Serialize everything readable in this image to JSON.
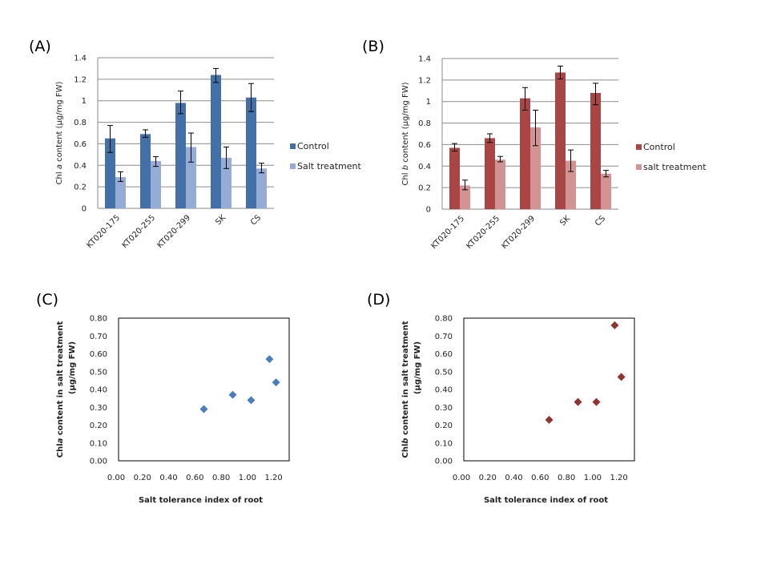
{
  "chart_data": [
    {
      "id": "A",
      "panel_label": "(A)",
      "type": "bar",
      "title": "",
      "xlabel": "",
      "ylabel": "Chl a content (µg/mg FW)",
      "ylabel_parts": [
        "Chl ",
        "a",
        " content (µg/mg FW)"
      ],
      "ylim": [
        0,
        1.4
      ],
      "yticks": [
        0,
        0.2,
        0.4,
        0.6,
        0.8,
        1,
        1.2,
        1.4
      ],
      "ytick_labels": [
        "0",
        "0.2",
        "0.4",
        "0.6",
        "0.8",
        "1",
        "1.2",
        "1.4"
      ],
      "grid": true,
      "legend_position": "right",
      "categories": [
        "KT020-175",
        "KT020-255",
        "KT020-299",
        "SK",
        "CS"
      ],
      "series": [
        {
          "name": "Control",
          "color": "#4470a8",
          "values": [
            0.65,
            0.69,
            0.98,
            1.24,
            1.03
          ],
          "err_low": [
            0.52,
            0.66,
            0.88,
            1.17,
            0.9
          ],
          "err_high": [
            0.77,
            0.73,
            1.09,
            1.3,
            1.16
          ]
        },
        {
          "name": "Salt treatment",
          "color": "#95add6",
          "values": [
            0.29,
            0.44,
            0.57,
            0.47,
            0.37
          ],
          "err_low": [
            0.25,
            0.39,
            0.43,
            0.37,
            0.33
          ],
          "err_high": [
            0.34,
            0.48,
            0.7,
            0.57,
            0.42
          ]
        }
      ]
    },
    {
      "id": "B",
      "panel_label": "(B)",
      "type": "bar",
      "title": "",
      "xlabel": "",
      "ylabel": "Chl b content (µg/mg FW)",
      "ylabel_parts": [
        "Chl ",
        "b",
        " content (µg/mg FW)"
      ],
      "ylim": [
        0,
        1.4
      ],
      "yticks": [
        0,
        0.2,
        0.4,
        0.6,
        0.8,
        1,
        1.2,
        1.4
      ],
      "ytick_labels": [
        "0",
        "0.2",
        "0.4",
        "0.6",
        "0.8",
        "1",
        "1.2",
        "1.4"
      ],
      "grid": true,
      "legend_position": "right",
      "categories": [
        "KT020-175",
        "KT020-255",
        "KT020-299",
        "SK",
        "CS"
      ],
      "series": [
        {
          "name": "Control",
          "color": "#a94544",
          "values": [
            0.57,
            0.66,
            1.03,
            1.27,
            1.08
          ],
          "err_low": [
            0.54,
            0.62,
            0.92,
            1.21,
            0.97
          ],
          "err_high": [
            0.61,
            0.7,
            1.13,
            1.33,
            1.17
          ]
        },
        {
          "name": "salt treatment",
          "color": "#d49393",
          "values": [
            0.22,
            0.46,
            0.76,
            0.45,
            0.33
          ],
          "err_low": [
            0.18,
            0.44,
            0.59,
            0.35,
            0.3
          ],
          "err_high": [
            0.27,
            0.49,
            0.92,
            0.55,
            0.36
          ]
        }
      ]
    },
    {
      "id": "C",
      "panel_label": "(C)",
      "type": "scatter",
      "title": "",
      "xlabel": "Salt tolerance index of root",
      "ylabel_line1_parts": [
        "Chl",
        "a",
        " content in salt treatment"
      ],
      "ylabel_line2": "(µg/mg FW)",
      "xlim": [
        0,
        1.3
      ],
      "ylim": [
        0,
        0.8
      ],
      "xticks": [
        0,
        0.2,
        0.4,
        0.6,
        0.8,
        1.0,
        1.2
      ],
      "xtick_labels": [
        "0.00",
        "0.20",
        "0.40",
        "0.60",
        "0.80",
        "1.00",
        "1.20"
      ],
      "yticks": [
        0,
        0.1,
        0.2,
        0.3,
        0.4,
        0.5,
        0.6,
        0.7,
        0.8
      ],
      "ytick_labels": [
        "0.00",
        "0.10",
        "0.20",
        "0.30",
        "0.40",
        "0.50",
        "0.60",
        "0.70",
        "0.80"
      ],
      "grid": false,
      "marker_color": "#4a7ebb",
      "x": [
        0.65,
        0.87,
        1.01,
        1.15,
        1.2
      ],
      "y": [
        0.29,
        0.37,
        0.34,
        0.57,
        0.44
      ]
    },
    {
      "id": "D",
      "panel_label": "(D)",
      "type": "scatter",
      "title": "",
      "xlabel": "Salt tolerance index of root",
      "ylabel_line1_parts": [
        "Chl",
        "b",
        " content in salt treatment"
      ],
      "ylabel_line2": "(µg/mg FW)",
      "xlim": [
        0,
        1.3
      ],
      "ylim": [
        0,
        0.8
      ],
      "xticks": [
        0,
        0.2,
        0.4,
        0.6,
        0.8,
        1.0,
        1.2
      ],
      "xtick_labels": [
        "0.00",
        "0.20",
        "0.40",
        "0.60",
        "0.80",
        "1.00",
        "1.20"
      ],
      "yticks": [
        0,
        0.1,
        0.2,
        0.3,
        0.4,
        0.5,
        0.6,
        0.7,
        0.8
      ],
      "ytick_labels": [
        "0.00",
        "0.10",
        "0.20",
        "0.30",
        "0.40",
        "0.50",
        "0.60",
        "0.70",
        "0.80"
      ],
      "grid": false,
      "marker_color": "#8e3432",
      "x": [
        0.65,
        0.87,
        1.01,
        1.15,
        1.2
      ],
      "y": [
        0.23,
        0.33,
        0.33,
        0.76,
        0.47
      ]
    }
  ]
}
